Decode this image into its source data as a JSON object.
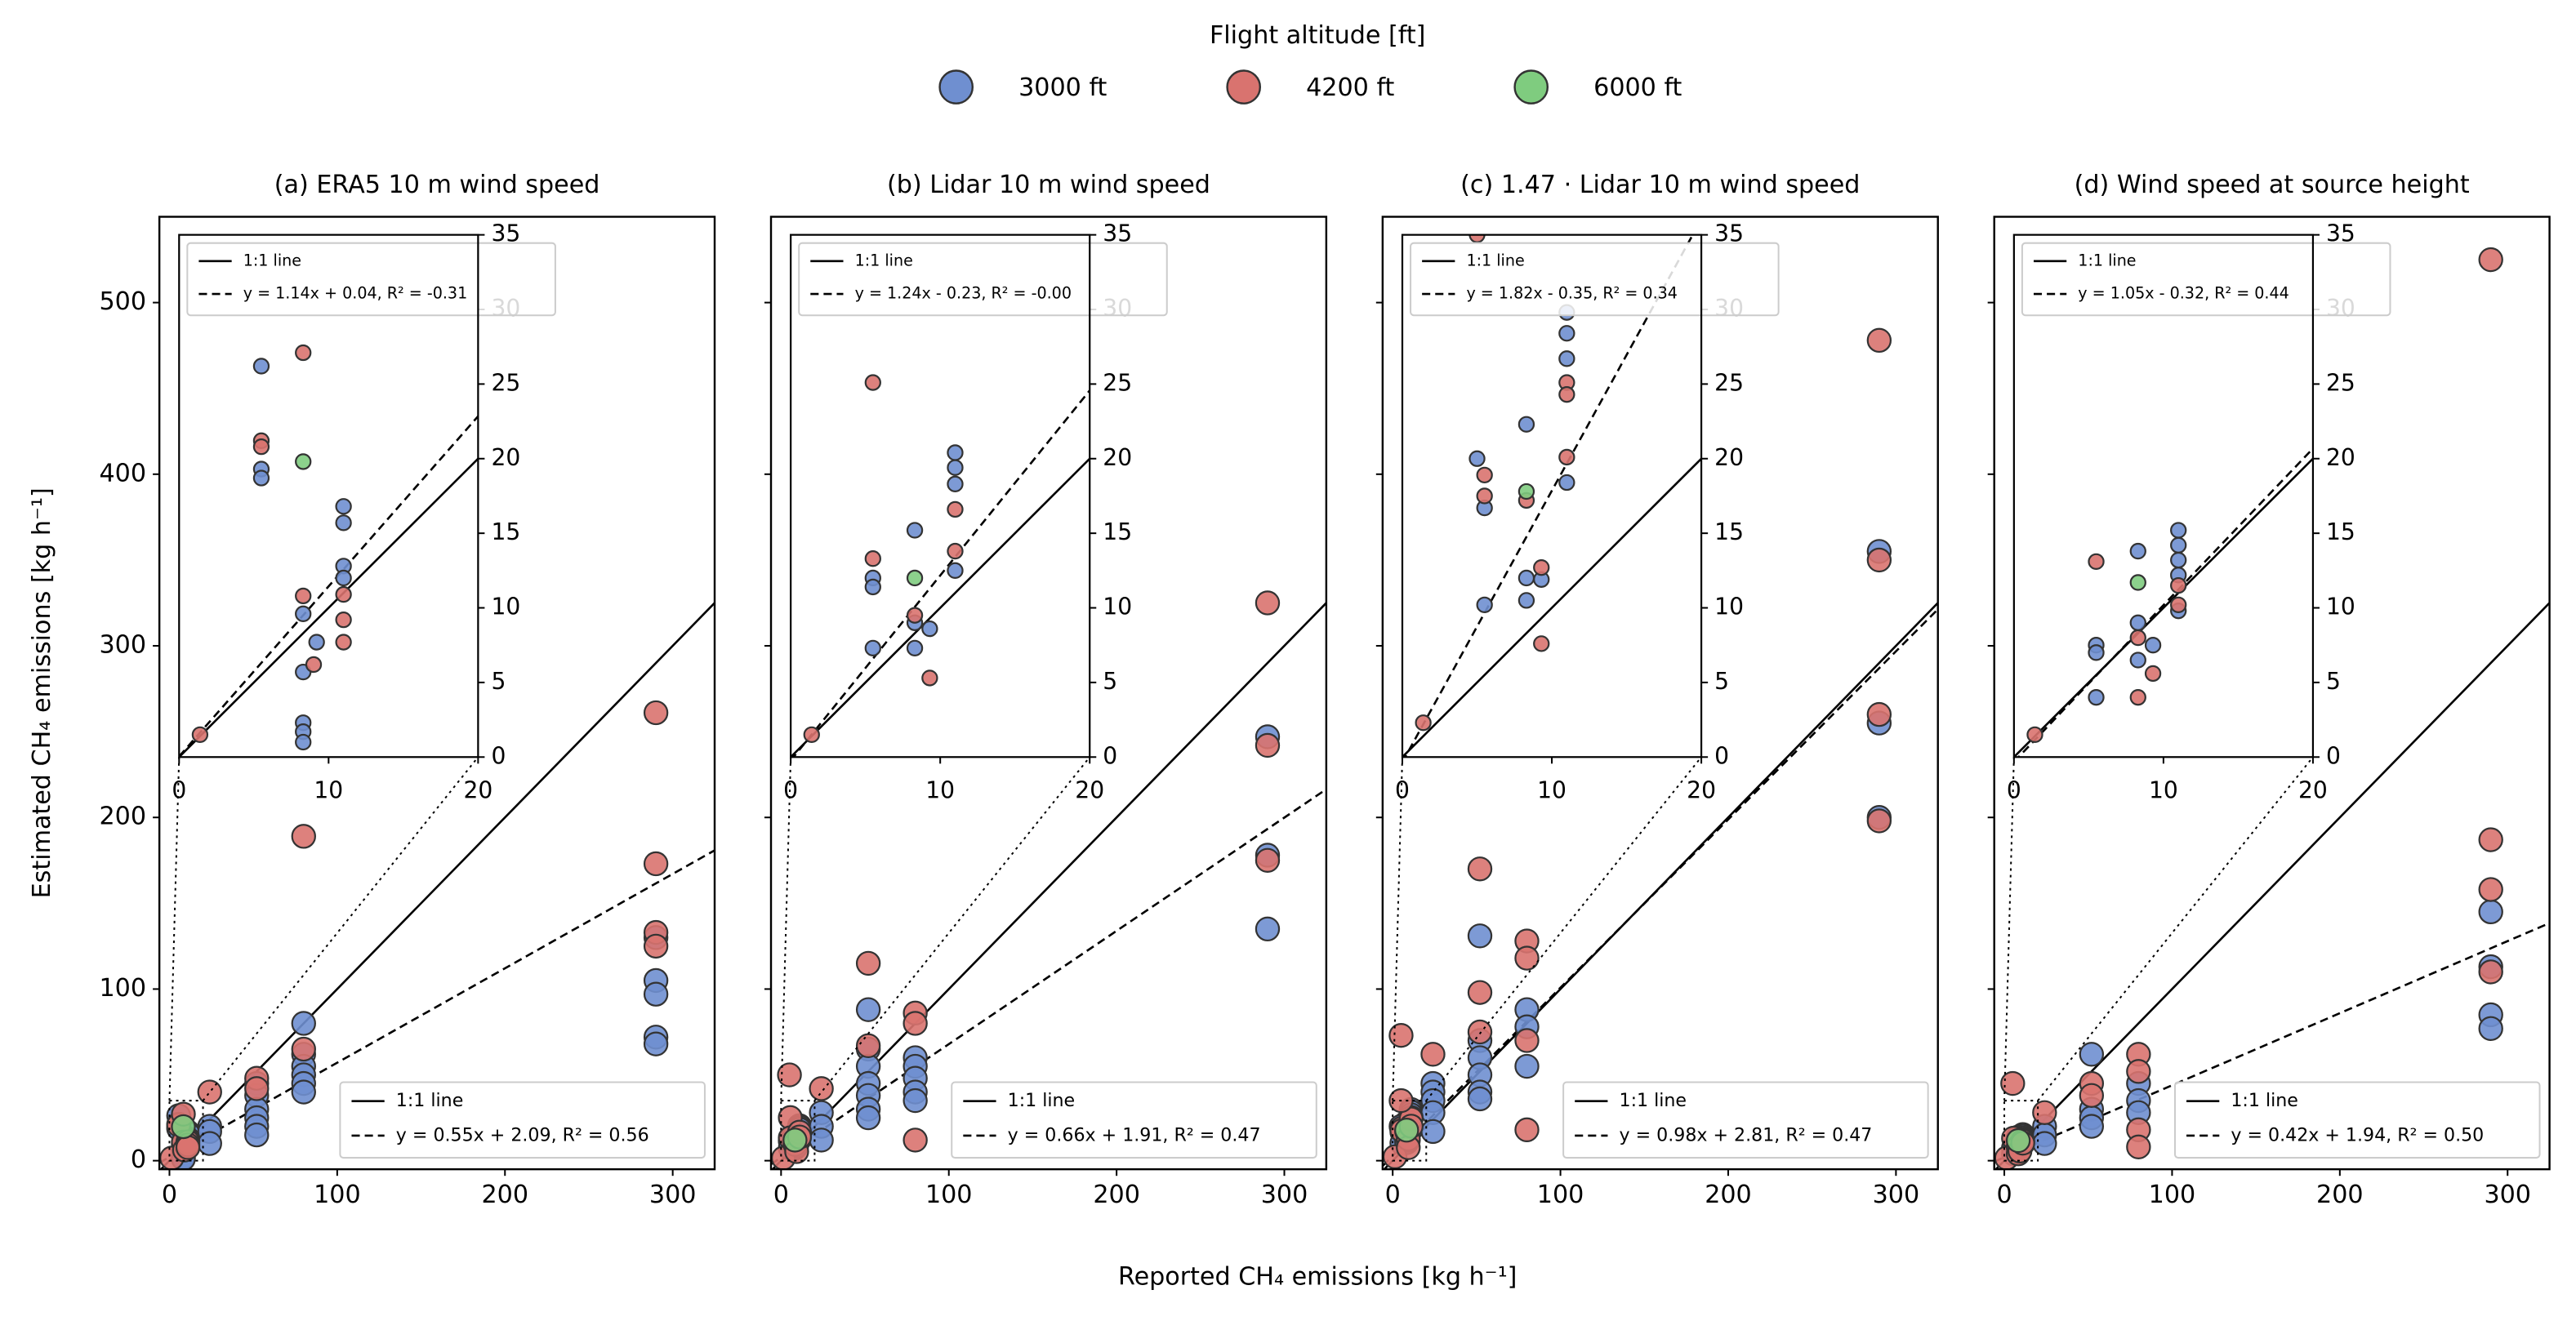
{
  "legend_title": "Flight altitude [ft]",
  "xlabel": "Reported CH₄ emissions [kg h⁻¹]",
  "ylabel": "Estimated CH₄ emissions [kg h⁻¹]",
  "chart_data": [
    {
      "type": "scatter",
      "title": "(a) ERA5 10 m wind speed",
      "xlim": [
        -6,
        325
      ],
      "ylim": [
        -5,
        550
      ],
      "xticks": [
        0,
        100,
        200,
        300
      ],
      "yticks": [
        0,
        100,
        200,
        300,
        400,
        500
      ],
      "ytick_labels": true,
      "legend_loc": "lower right",
      "series": [
        {
          "name": "3000 ft",
          "color": "#6f8fd0",
          "x": [
            5.5,
            5.5,
            5.5,
            8.3,
            8.3,
            8.3,
            8.3,
            8.3,
            9.2,
            11,
            11,
            11,
            11,
            24,
            24,
            24,
            52,
            52,
            52,
            52,
            52,
            52,
            80,
            80,
            80,
            80,
            80,
            80,
            290,
            290,
            290,
            290,
            290
          ],
          "y": [
            26.2,
            19.3,
            18.7,
            9.6,
            5.7,
            2.3,
            1.7,
            1.0,
            7.7,
            16.8,
            15.7,
            12.8,
            12.0,
            20,
            17,
            10,
            45,
            38,
            30,
            25,
            20,
            15,
            80,
            62,
            55,
            50,
            45,
            40,
            130,
            105,
            97,
            72,
            68
          ]
        },
        {
          "name": "4200 ft",
          "color": "#d9736f",
          "x": [
            1.4,
            5.5,
            5.5,
            8.3,
            8.3,
            9,
            11,
            11,
            11,
            24,
            52,
            52,
            80,
            80,
            290,
            290,
            290,
            290
          ],
          "y": [
            1.5,
            21.2,
            20.8,
            27.1,
            10.8,
            6.2,
            10.9,
            9.2,
            7.7,
            40,
            48,
            42,
            189,
            65,
            261,
            173,
            133,
            125
          ]
        },
        {
          "name": "6000 ft",
          "color": "#7fcc7f",
          "x": [
            8.3
          ],
          "y": [
            19.8
          ]
        }
      ],
      "lines": [
        {
          "label": "1:1 line",
          "slope": 1,
          "intercept": 0,
          "dash": "solid"
        },
        {
          "label": "y = 0.55x + 2.09, R² = 0.56",
          "slope": 0.55,
          "intercept": 2.09,
          "dash": "dashed"
        }
      ],
      "inset": {
        "xlim": [
          0,
          20
        ],
        "ylim": [
          0,
          35
        ],
        "xticks": [
          0,
          10,
          20
        ],
        "yticks": [
          0,
          5,
          10,
          15,
          20,
          25,
          30,
          35
        ],
        "legend_loc": "upper left",
        "lines": [
          {
            "label": "1:1 line",
            "slope": 1,
            "intercept": 0,
            "dash": "solid"
          },
          {
            "label": "y = 1.14x + 0.04, R² = -0.31",
            "slope": 1.14,
            "intercept": 0.04,
            "dash": "dashed"
          }
        ]
      }
    },
    {
      "type": "scatter",
      "title": "(b) Lidar 10 m wind speed",
      "xlim": [
        -6,
        325
      ],
      "ylim": [
        -5,
        550
      ],
      "xticks": [
        0,
        100,
        200,
        300
      ],
      "yticks": [
        0,
        100,
        200,
        300,
        400,
        500
      ],
      "ytick_labels": false,
      "legend_loc": "lower right",
      "series": [
        {
          "name": "3000 ft",
          "color": "#6f8fd0",
          "x": [
            5.5,
            5.5,
            5.5,
            8.3,
            8.3,
            8.3,
            9.3,
            11,
            11,
            11,
            11,
            24,
            24,
            24,
            52,
            52,
            52,
            52,
            52,
            52,
            52,
            80,
            80,
            80,
            80,
            80,
            290,
            290,
            290
          ],
          "y": [
            12.0,
            11.4,
            7.3,
            15.2,
            9.0,
            7.3,
            8.6,
            20.4,
            19.4,
            18.3,
            12.5,
            28,
            20,
            12,
            88,
            65,
            55,
            45,
            38,
            30,
            25,
            60,
            55,
            48,
            40,
            35,
            247,
            178,
            135
          ]
        },
        {
          "name": "4200 ft",
          "color": "#d9736f",
          "x": [
            1.4,
            5.5,
            5.5,
            8.3,
            9.3,
            11,
            11,
            5,
            24,
            52,
            52,
            80,
            80,
            80,
            290,
            290,
            290
          ],
          "y": [
            1.5,
            25.1,
            13.3,
            9.5,
            5.3,
            16.6,
            13.8,
            50,
            42,
            115,
            67,
            86,
            80,
            12,
            325,
            242,
            175
          ]
        },
        {
          "name": "6000 ft",
          "color": "#7fcc7f",
          "x": [
            8.3
          ],
          "y": [
            12.0
          ]
        }
      ],
      "lines": [
        {
          "label": "1:1 line",
          "slope": 1,
          "intercept": 0,
          "dash": "solid"
        },
        {
          "label": "y = 0.66x + 1.91, R² = 0.47",
          "slope": 0.66,
          "intercept": 1.91,
          "dash": "dashed"
        }
      ],
      "inset": {
        "xlim": [
          0,
          20
        ],
        "ylim": [
          0,
          35
        ],
        "xticks": [
          0,
          10,
          20
        ],
        "yticks": [
          0,
          5,
          10,
          15,
          20,
          25,
          30,
          35
        ],
        "legend_loc": "upper left",
        "lines": [
          {
            "label": "1:1 line",
            "slope": 1,
            "intercept": 0,
            "dash": "solid"
          },
          {
            "label": "y = 1.24x - 0.23, R² = -0.00",
            "slope": 1.24,
            "intercept": -0.23,
            "dash": "dashed"
          }
        ]
      }
    },
    {
      "type": "scatter",
      "title": "(c) 1.47 · Lidar 10 m wind speed",
      "xlim": [
        -6,
        325
      ],
      "ylim": [
        -5,
        550
      ],
      "xticks": [
        0,
        100,
        200,
        300
      ],
      "yticks": [
        0,
        100,
        200,
        300,
        400,
        500
      ],
      "ytick_labels": false,
      "legend_loc": "lower right",
      "series": [
        {
          "name": "3000 ft",
          "color": "#6f8fd0",
          "x": [
            5.5,
            5.5,
            8.3,
            8.3,
            8.3,
            9.3,
            11,
            11,
            11,
            11,
            5,
            24,
            24,
            24,
            24,
            24,
            52,
            52,
            52,
            52,
            52,
            52,
            80,
            80,
            80,
            290,
            290,
            290
          ],
          "y": [
            16.7,
            10.2,
            22.3,
            12.0,
            10.5,
            11.9,
            29.8,
            28.4,
            26.7,
            18.4,
            20,
            45,
            40,
            35,
            28,
            17,
            131,
            70,
            60,
            50,
            40,
            36,
            88,
            78,
            55,
            355,
            255,
            200
          ]
        },
        {
          "name": "4200 ft",
          "color": "#d9736f",
          "x": [
            1.4,
            5.5,
            5.5,
            8.3,
            9.3,
            9.3,
            11,
            11,
            11,
            5,
            5,
            24,
            52,
            52,
            52,
            80,
            80,
            80,
            80,
            290,
            290,
            290,
            290
          ],
          "y": [
            2.3,
            18.9,
            17.5,
            17.2,
            12.7,
            7.6,
            25.1,
            24.3,
            20.1,
            73,
            35,
            62,
            170,
            98,
            75,
            128,
            118,
            70,
            18,
            478,
            350,
            260,
            198
          ]
        },
        {
          "name": "6000 ft",
          "color": "#7fcc7f",
          "x": [
            8.3
          ],
          "y": [
            17.8
          ]
        }
      ],
      "lines": [
        {
          "label": "1:1 line",
          "slope": 1,
          "intercept": 0,
          "dash": "solid"
        },
        {
          "label": "y = 0.98x + 2.81, R² = 0.47",
          "slope": 0.98,
          "intercept": 2.81,
          "dash": "dashed"
        }
      ],
      "inset": {
        "xlim": [
          0,
          20
        ],
        "ylim": [
          0,
          35
        ],
        "xticks": [
          0,
          10,
          20
        ],
        "yticks": [
          0,
          5,
          10,
          15,
          20,
          25,
          30,
          35
        ],
        "legend_loc": "upper left",
        "lines": [
          {
            "label": "1:1 line",
            "slope": 1,
            "intercept": 0,
            "dash": "solid"
          },
          {
            "label": "y = 1.82x - 0.35, R² = 0.34",
            "slope": 1.82,
            "intercept": -0.35,
            "dash": "dashed"
          }
        ]
      }
    },
    {
      "type": "scatter",
      "title": "(d) Wind speed at source height",
      "xlim": [
        -6,
        325
      ],
      "ylim": [
        -5,
        550
      ],
      "xticks": [
        0,
        100,
        200,
        300
      ],
      "yticks": [
        0,
        100,
        200,
        300,
        400,
        500
      ],
      "ytick_labels": false,
      "legend_loc": "lower right",
      "series": [
        {
          "name": "3000 ft",
          "color": "#6f8fd0",
          "x": [
            5.5,
            5.5,
            5.5,
            8.3,
            8.3,
            8.3,
            9.3,
            11,
            11,
            11,
            11,
            11,
            24,
            24,
            24,
            52,
            52,
            52,
            52,
            80,
            80,
            80,
            290,
            290,
            290,
            290
          ],
          "y": [
            7.5,
            7.0,
            4.0,
            13.8,
            9.0,
            6.5,
            7.5,
            15.2,
            14.2,
            13.2,
            12.2,
            9.8,
            20,
            15,
            10,
            62,
            30,
            25,
            20,
            45,
            35,
            28,
            145,
            113,
            85,
            77
          ]
        },
        {
          "name": "4200 ft",
          "color": "#d9736f",
          "x": [
            1.4,
            5.5,
            8.3,
            8.3,
            9.3,
            11,
            11,
            5,
            24,
            52,
            52,
            80,
            80,
            80,
            80,
            290,
            290,
            290,
            290
          ],
          "y": [
            1.5,
            13.1,
            8.0,
            4.0,
            5.6,
            11.5,
            10.2,
            45,
            28,
            45,
            38,
            62,
            52,
            18,
            8,
            525,
            187,
            158,
            110
          ]
        },
        {
          "name": "6000 ft",
          "color": "#7fcc7f",
          "x": [
            8.3
          ],
          "y": [
            11.7
          ]
        }
      ],
      "lines": [
        {
          "label": "1:1 line",
          "slope": 1,
          "intercept": 0,
          "dash": "solid"
        },
        {
          "label": "y = 0.42x + 1.94, R² = 0.50",
          "slope": 0.42,
          "intercept": 1.94,
          "dash": "dashed"
        }
      ],
      "inset": {
        "xlim": [
          0,
          20
        ],
        "ylim": [
          0,
          35
        ],
        "xticks": [
          0,
          10,
          20
        ],
        "yticks": [
          0,
          5,
          10,
          15,
          20,
          25,
          30,
          35
        ],
        "legend_loc": "upper left",
        "lines": [
          {
            "label": "1:1 line",
            "slope": 1,
            "intercept": 0,
            "dash": "solid"
          },
          {
            "label": "y = 1.05x - 0.32, R² = 0.44",
            "slope": 1.05,
            "intercept": -0.32,
            "dash": "dashed"
          }
        ]
      }
    }
  ]
}
